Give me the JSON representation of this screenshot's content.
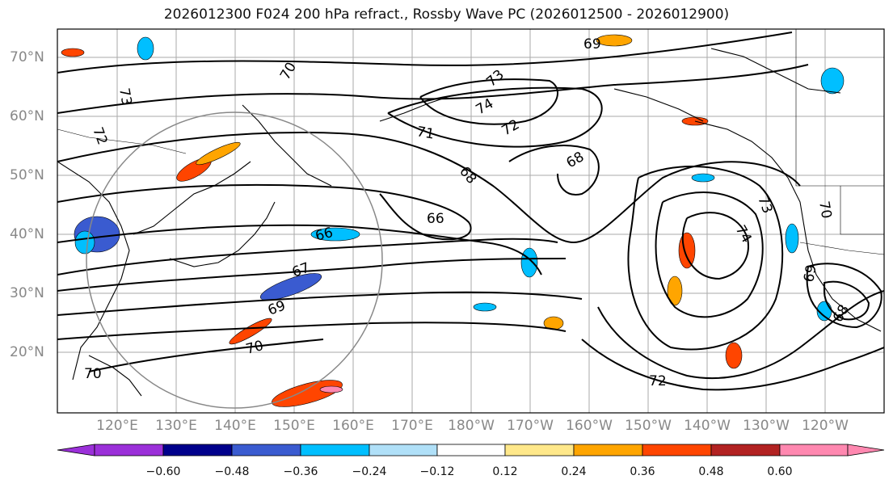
{
  "title": "2026012300 F024 200 hPa refract., Rossby Wave PC (2026012500 - 2026012900)",
  "lat_labels": [
    "70°N",
    "60°N",
    "50°N",
    "40°N",
    "30°N",
    "20°N"
  ],
  "lon_labels": [
    "120°E",
    "130°E",
    "140°E",
    "150°E",
    "160°E",
    "170°E",
    "180°W",
    "170°W",
    "160°W",
    "150°W",
    "140°W",
    "130°W",
    "120°W"
  ],
  "contour_labels": [
    "69",
    "73",
    "70",
    "72",
    "73",
    "74",
    "72",
    "71",
    "68",
    "68",
    "66",
    "66",
    "67",
    "69",
    "70",
    "70",
    "73",
    "74",
    "70",
    "69",
    "68",
    "72"
  ],
  "colorbar": {
    "ticks": [
      "−0.60",
      "−0.48",
      "−0.36",
      "−0.24",
      "−0.12",
      "0.12",
      "0.24",
      "0.36",
      "0.48",
      "0.60"
    ],
    "colors": [
      "#9b30d9",
      "#00008b",
      "#3a5bd0",
      "#00bfff",
      "#b0e0f8",
      "#ffffff",
      "#ffe88a",
      "#ffa500",
      "#ff4500",
      "#b22222",
      "#ff88b0"
    ]
  }
}
